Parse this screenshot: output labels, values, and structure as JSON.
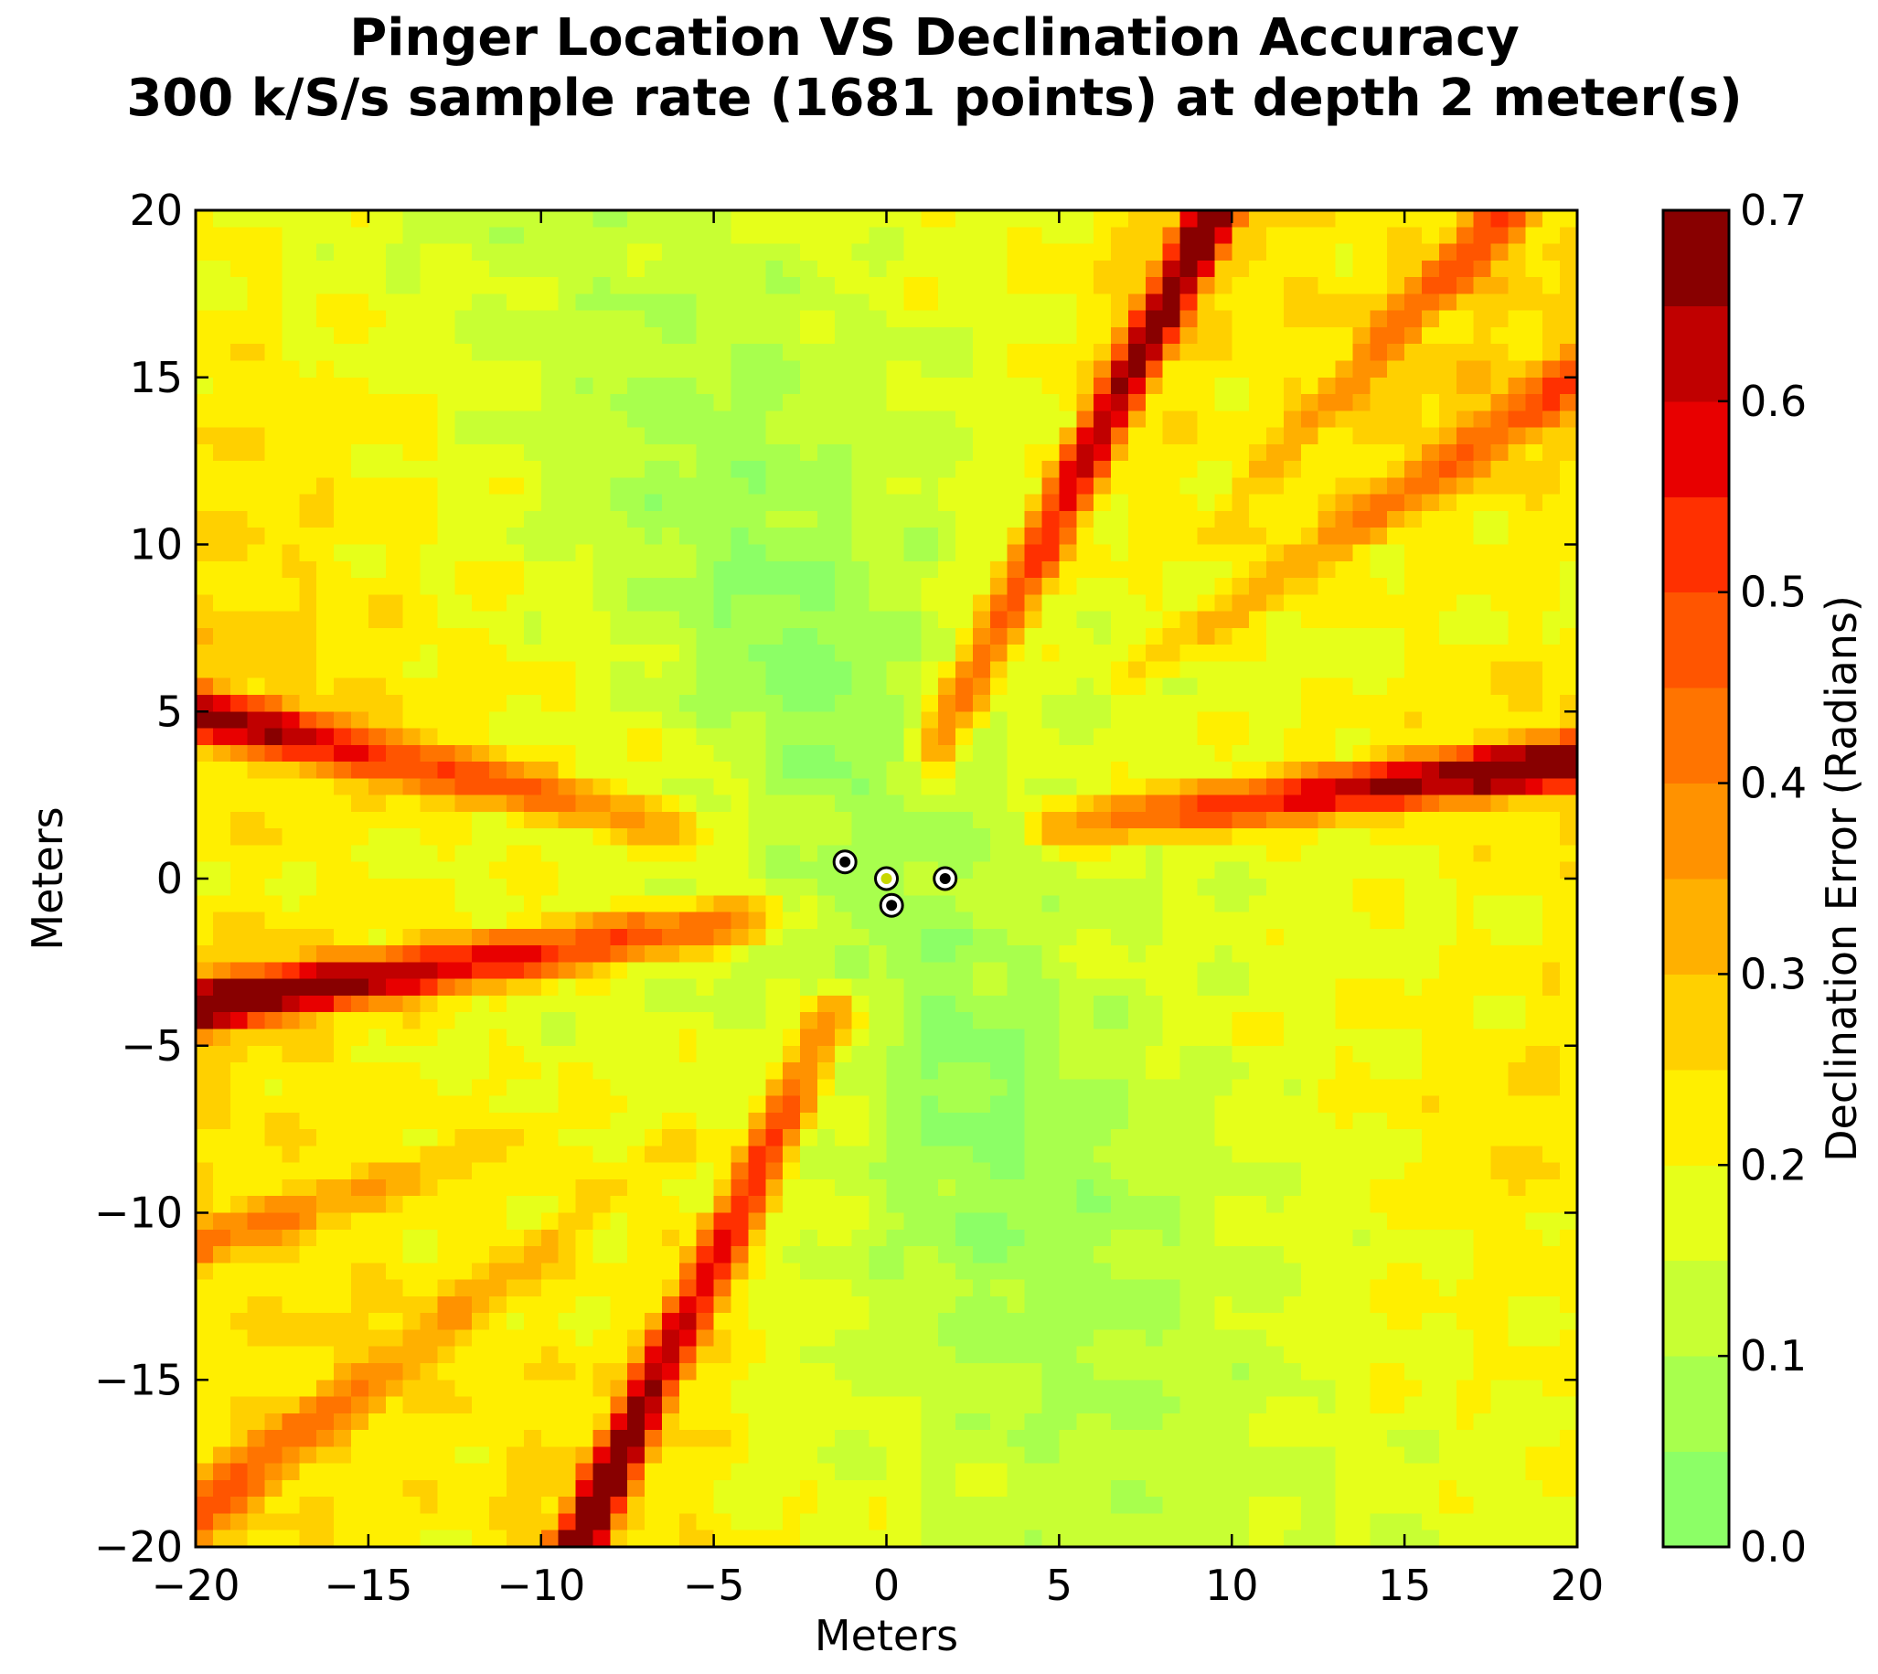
{
  "chart_data": {
    "type": "heatmap",
    "subtype": "filled-contour",
    "title": [
      "Pinger Location VS Declination Accuracy",
      "300 k/S/s sample rate (1681 points) at depth 2 meter(s)"
    ],
    "xlabel": "Meters",
    "ylabel": "Meters",
    "xlim": [
      -20,
      20
    ],
    "ylim": [
      -20,
      20
    ],
    "x_ticks": [
      -20,
      -15,
      -10,
      -5,
      0,
      5,
      10,
      15,
      20
    ],
    "y_ticks": [
      -20,
      -15,
      -10,
      -5,
      0,
      5,
      10,
      15,
      20
    ],
    "x_tick_labels": [
      "−20",
      "−15",
      "−10",
      "−5",
      "0",
      "5",
      "10",
      "15",
      "20"
    ],
    "y_tick_labels": [
      "−20",
      "−15",
      "−10",
      "−5",
      "0",
      "5",
      "10",
      "15",
      "20"
    ],
    "grid": false,
    "colorbar": {
      "label": "Declination Error (Radians)",
      "range": [
        0.0,
        0.7
      ],
      "ticks": [
        0.0,
        0.1,
        0.2,
        0.3,
        0.4,
        0.5,
        0.6,
        0.7
      ],
      "tick_labels": [
        "0.0",
        "0.1",
        "0.2",
        "0.3",
        "0.4",
        "0.5",
        "0.6",
        "0.7"
      ],
      "levels": [
        0.0,
        0.05,
        0.1,
        0.15,
        0.2,
        0.25,
        0.3,
        0.35,
        0.4,
        0.45,
        0.5,
        0.55,
        0.6,
        0.65,
        0.7
      ],
      "colors": [
        "#8cff66",
        "#a8ff4d",
        "#c8ff33",
        "#e6ff1a",
        "#ffef00",
        "#ffd000",
        "#ffb000",
        "#ff9200",
        "#ff7400",
        "#ff5500",
        "#ff3000",
        "#e80000",
        "#c00000",
        "#880000"
      ]
    },
    "hydrophones": [
      {
        "x": -1.2,
        "y": 0.5
      },
      {
        "x": 0.0,
        "y": 0.0
      },
      {
        "x": 1.7,
        "y": 0.0
      },
      {
        "x": 0.15,
        "y": -0.8
      }
    ],
    "error_lobes": [
      {
        "x0": 1.5,
        "y0": 4.0,
        "x1": 9.5,
        "y1": 20,
        "peak": 0.72,
        "width": 0.9
      },
      {
        "x0": -1.5,
        "y0": -4.0,
        "x1": -9.0,
        "y1": -20,
        "peak": 0.72,
        "width": 0.9
      },
      {
        "x0": 5.0,
        "y0": 1.6,
        "x1": 20,
        "y1": 3.5,
        "peak": 0.72,
        "width": 1.0
      },
      {
        "x0": -4.0,
        "y0": -1.2,
        "x1": -20,
        "y1": -3.8,
        "peak": 0.72,
        "width": 1.0
      },
      {
        "x0": -6.0,
        "y0": 1.5,
        "x1": -20,
        "y1": 5.0,
        "peak": 0.62,
        "width": 1.1
      },
      {
        "x0": 7.0,
        "y0": 6.0,
        "x1": 20,
        "y1": 15.0,
        "peak": 0.46,
        "width": 1.2
      },
      {
        "x0": 9.0,
        "y0": 10.0,
        "x1": 18,
        "y1": 20,
        "peak": 0.48,
        "width": 1.1
      },
      {
        "x0": -6.0,
        "y0": -8.0,
        "x1": -20,
        "y1": -19.0,
        "peak": 0.44,
        "width": 1.3
      },
      {
        "x0": -6.0,
        "y0": -6.0,
        "x1": -20,
        "y1": -11.0,
        "peak": 0.38,
        "width": 1.2
      }
    ],
    "base_field": {
      "near_min": 0.06,
      "far_mid": 0.2,
      "yellow_far": 0.24,
      "noise": 0.03
    }
  }
}
